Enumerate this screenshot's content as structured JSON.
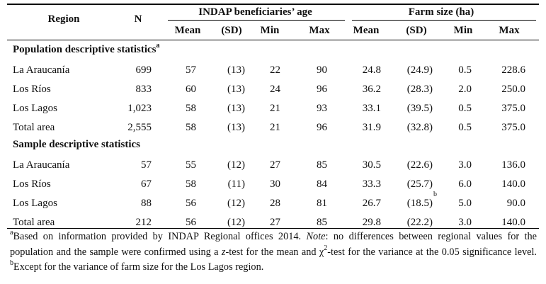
{
  "header": {
    "region": "Region",
    "n": "N",
    "age_group": "INDAP beneficiaries’ age",
    "farm_group": "Farm size (ha)",
    "subcols": [
      "Mean",
      "(SD)",
      "Min",
      "Max",
      "Mean",
      "(SD)",
      "Min",
      "Max"
    ]
  },
  "sections": [
    {
      "title": "Population descriptive statistics",
      "title_sup": "a",
      "rows": [
        [
          "La Araucanía",
          "699",
          "57",
          "(13)",
          "22",
          "90",
          "24.8",
          "(24.9)",
          "0.5",
          "228.6"
        ],
        [
          "Los Ríos",
          "833",
          "60",
          "(13)",
          "24",
          "96",
          "36.2",
          "(28.3)",
          "2.0",
          "250.0"
        ],
        [
          "Los Lagos",
          "1,023",
          "58",
          "(13)",
          "21",
          "93",
          "33.1",
          "(39.5)",
          "0.5",
          "375.0"
        ],
        [
          "Total area",
          "2,555",
          "58",
          "(13)",
          "21",
          "96",
          "31.9",
          "(32.8)",
          "0.5",
          "375.0"
        ]
      ]
    },
    {
      "title": "Sample descriptive statistics",
      "rows": [
        [
          "La Araucanía",
          "57",
          "55",
          "(12)",
          "27",
          "85",
          "30.5",
          "(22.6)",
          "3.0",
          "136.0"
        ],
        [
          "Los Ríos",
          "67",
          "58",
          "(11)",
          "30",
          "84",
          "33.3",
          "(25.7)",
          "6.0",
          "140.0"
        ],
        [
          "Los Lagos",
          "88",
          "56",
          "(12)",
          "28",
          "81",
          "26.7",
          "(18.5)",
          "5.0",
          "90.0"
        ],
        [
          "Total area",
          "212",
          "56",
          "(12)",
          "27",
          "85",
          "29.8",
          "(22.2)",
          "3.0",
          "140.0"
        ]
      ]
    }
  ],
  "special_sup": {
    "section": 1,
    "row": 2,
    "col": 7,
    "text": "b"
  },
  "footnote": {
    "sup_a": "a",
    "part1": "Based on information provided by INDAP Regional offices 2014. ",
    "note_label": "Note",
    "part2": ": no differences between regional values for the population and the sample were confirmed using a ",
    "z_test": "z",
    "part3": "-test for the mean and χ",
    "chi_sup": "2",
    "part4": "-test for the variance at the 0.05 significance level. ",
    "sup_b": "b",
    "part5": "Except for the variance of farm size for the Los Lagos region."
  }
}
